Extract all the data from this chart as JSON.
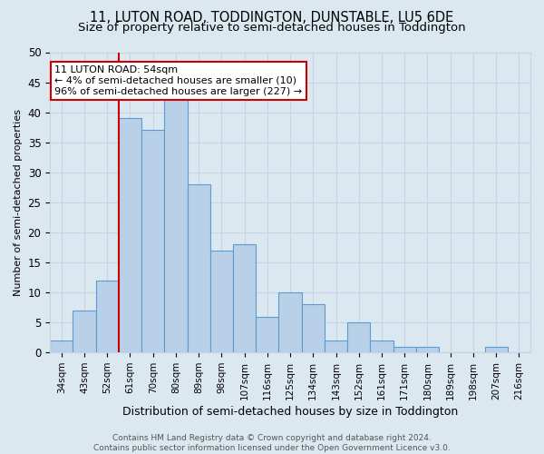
{
  "title": "11, LUTON ROAD, TODDINGTON, DUNSTABLE, LU5 6DE",
  "subtitle": "Size of property relative to semi-detached houses in Toddington",
  "xlabel": "Distribution of semi-detached houses by size in Toddington",
  "ylabel": "Number of semi-detached properties",
  "footer1": "Contains HM Land Registry data © Crown copyright and database right 2024.",
  "footer2": "Contains public sector information licensed under the Open Government Licence v3.0.",
  "categories": [
    "34sqm",
    "43sqm",
    "52sqm",
    "61sqm",
    "70sqm",
    "80sqm",
    "89sqm",
    "98sqm",
    "107sqm",
    "116sqm",
    "125sqm",
    "134sqm",
    "143sqm",
    "152sqm",
    "161sqm",
    "171sqm",
    "180sqm",
    "189sqm",
    "198sqm",
    "207sqm",
    "216sqm"
  ],
  "values": [
    2,
    7,
    12,
    39,
    37,
    42,
    28,
    17,
    18,
    6,
    10,
    8,
    2,
    5,
    2,
    1,
    1,
    0,
    0,
    1,
    0
  ],
  "bar_color": "#b8d0e8",
  "bar_edge_color": "#5b9bd5",
  "bar_width": 1.0,
  "grid_color": "#c8d4e4",
  "bg_color": "#dce8f0",
  "red_line_x": 2.5,
  "annotation_text1": "11 LUTON ROAD: 54sqm",
  "annotation_text2": "← 4% of semi-detached houses are smaller (10)",
  "annotation_text3": "96% of semi-detached houses are larger (227) →",
  "annotation_box_color": "white",
  "annotation_border_color": "#cc0000",
  "red_line_color": "#cc0000",
  "ylim": [
    0,
    50
  ],
  "yticks": [
    0,
    5,
    10,
    15,
    20,
    25,
    30,
    35,
    40,
    45,
    50
  ],
  "title_fontsize": 10.5,
  "subtitle_fontsize": 9.5,
  "annotation_fontsize": 8
}
